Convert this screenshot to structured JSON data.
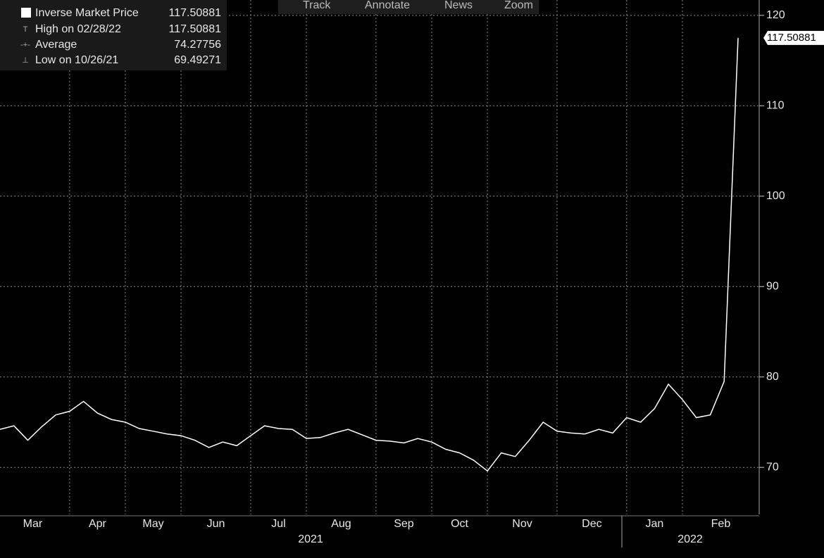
{
  "toolbar": [
    "Track",
    "Annotate",
    "News",
    "Zoom"
  ],
  "chart_data": {
    "type": "line",
    "series": [
      {
        "name": "Inverse Market Price",
        "color": "#ffffff",
        "values": [
          74.2,
          74.6,
          73.0,
          74.5,
          75.8,
          76.2,
          77.3,
          76.0,
          75.3,
          75.0,
          74.3,
          74.0,
          73.7,
          73.5,
          73.0,
          72.2,
          72.8,
          72.4,
          73.5,
          74.6,
          74.3,
          74.2,
          73.2,
          73.3,
          73.8,
          74.2,
          73.6,
          73.0,
          72.9,
          72.7,
          73.2,
          72.8,
          72.0,
          71.6,
          70.8,
          69.6,
          71.6,
          71.2,
          73.0,
          75.0,
          74.0,
          73.8,
          73.7,
          74.2,
          73.8,
          75.5,
          75.0,
          76.5,
          79.2,
          77.5,
          75.5,
          75.8,
          79.5,
          117.50881
        ]
      }
    ],
    "categories": [
      "Mar",
      null,
      null,
      null,
      null,
      "Apr",
      null,
      null,
      null,
      "May",
      null,
      null,
      null,
      "Jun",
      null,
      null,
      null,
      null,
      "Jul",
      null,
      null,
      null,
      "Aug",
      null,
      null,
      null,
      null,
      "Sep",
      null,
      null,
      null,
      "Oct",
      null,
      null,
      null,
      "Nov",
      null,
      null,
      null,
      null,
      "Dec",
      null,
      null,
      null,
      null,
      "Jan",
      null,
      null,
      null,
      "Feb",
      null,
      null,
      null,
      null
    ],
    "year_groups": [
      "2021",
      "2022"
    ],
    "stats": [
      {
        "label": "High on 02/28/22",
        "value": 117.50881
      },
      {
        "label": "Average",
        "value": 74.27756
      },
      {
        "label": "Low on 10/26/21",
        "value": 69.49271
      }
    ],
    "ylim": [
      64.8,
      121.7
    ],
    "yticks": [
      70,
      80,
      90,
      100,
      110,
      120
    ],
    "grid": true
  }
}
